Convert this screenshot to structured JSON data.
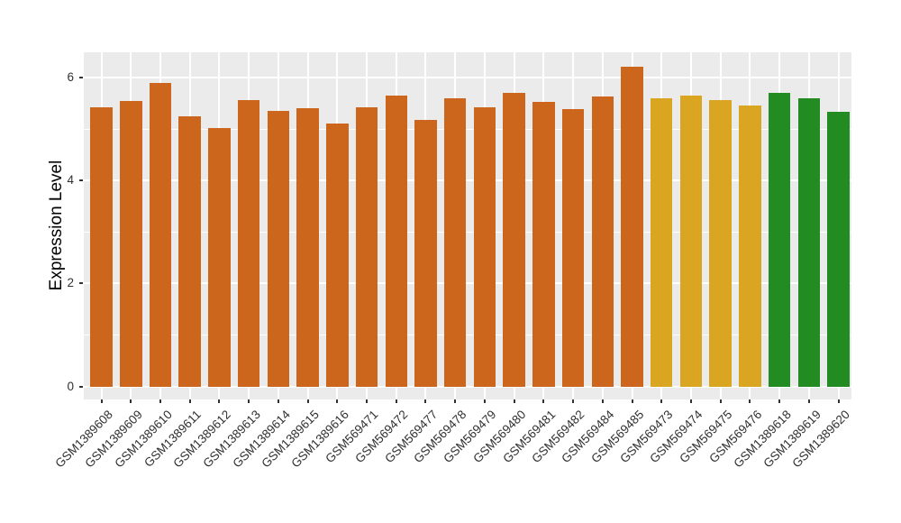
{
  "chart_data": {
    "type": "bar",
    "title": "",
    "xlabel": "",
    "ylabel": "Expression Level",
    "ylim": [
      0,
      6.49
    ],
    "yticks": [
      0,
      2,
      4,
      6
    ],
    "ytick_labels": [
      "0",
      "2",
      "4",
      "6"
    ],
    "yminor": [
      1,
      3,
      5
    ],
    "grid": "on",
    "legend_position": "none",
    "panel_background": "#EBEBEB",
    "grid_color": "#FFFFFF",
    "axis_text_color": "#303030",
    "tick_mark_color": "#333333",
    "group_colors": {
      "chocolate": "#CD661D",
      "goldenrod": "#DAA520",
      "forestgreen": "#228B22"
    },
    "categories": [
      "GSM1389608",
      "GSM1389609",
      "GSM1389610",
      "GSM1389611",
      "GSM1389612",
      "GSM1389613",
      "GSM1389614",
      "GSM1389615",
      "GSM1389616",
      "GSM569471",
      "GSM569472",
      "GSM569477",
      "GSM569478",
      "GSM569479",
      "GSM569480",
      "GSM569481",
      "GSM569482",
      "GSM569484",
      "GSM569485",
      "GSM569473",
      "GSM569474",
      "GSM569475",
      "GSM569476",
      "GSM1389618",
      "GSM1389619",
      "GSM1389620"
    ],
    "values": [
      5.42,
      5.55,
      5.9,
      5.25,
      5.02,
      5.56,
      5.36,
      5.4,
      5.1,
      5.43,
      5.65,
      5.18,
      5.6,
      5.42,
      5.71,
      5.52,
      5.39,
      5.63,
      6.21,
      5.6,
      5.65,
      5.56,
      5.46,
      5.7,
      5.59,
      5.33
    ],
    "bar_groups": [
      "chocolate",
      "chocolate",
      "chocolate",
      "chocolate",
      "chocolate",
      "chocolate",
      "chocolate",
      "chocolate",
      "chocolate",
      "chocolate",
      "chocolate",
      "chocolate",
      "chocolate",
      "chocolate",
      "chocolate",
      "chocolate",
      "chocolate",
      "chocolate",
      "chocolate",
      "goldenrod",
      "goldenrod",
      "goldenrod",
      "goldenrod",
      "forestgreen",
      "forestgreen",
      "forestgreen"
    ]
  }
}
